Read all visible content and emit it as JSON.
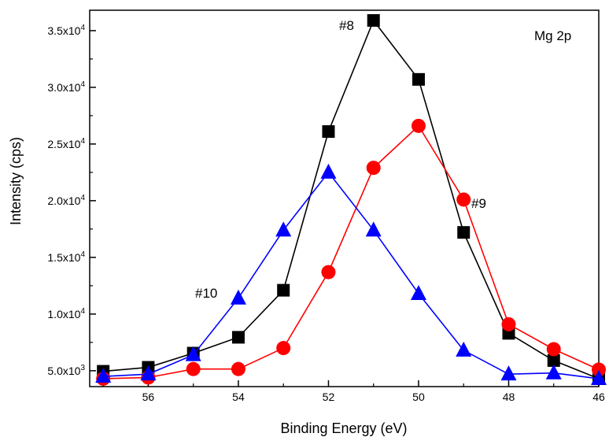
{
  "chart_data": {
    "type": "line",
    "title": "",
    "xlabel": "Binding Energy (eV)",
    "ylabel": "Intensity (cps)",
    "xlim": [
      57.3,
      46
    ],
    "ylim": [
      3600,
      36800
    ],
    "x_reversed": true,
    "grid": false,
    "xticks": [
      56,
      54,
      52,
      50,
      48,
      46
    ],
    "yticks": [
      {
        "value": 5000,
        "mantissa": "5.0x10",
        "exp": "3"
      },
      {
        "value": 10000,
        "mantissa": "1.0x10",
        "exp": "4"
      },
      {
        "value": 15000,
        "mantissa": "1.5x10",
        "exp": "4"
      },
      {
        "value": 20000,
        "mantissa": "2.0x10",
        "exp": "4"
      },
      {
        "value": 25000,
        "mantissa": "2.5x10",
        "exp": "4"
      },
      {
        "value": 30000,
        "mantissa": "3.0x10",
        "exp": "4"
      },
      {
        "value": 35000,
        "mantissa": "3.5x10",
        "exp": "4"
      }
    ],
    "series": [
      {
        "name": "#8",
        "color": "#000000",
        "marker": "square",
        "points": [
          [
            57,
            4950
          ],
          [
            56,
            5300
          ],
          [
            55,
            6550
          ],
          [
            54,
            7950
          ],
          [
            53,
            12100
          ],
          [
            52,
            26100
          ],
          [
            51,
            35900
          ],
          [
            50,
            30700
          ],
          [
            49,
            17200
          ],
          [
            48,
            8300
          ],
          [
            47,
            5900
          ],
          [
            46,
            4300
          ]
        ]
      },
      {
        "name": "#9",
        "color": "#ff0000",
        "marker": "circle",
        "points": [
          [
            57,
            4300
          ],
          [
            56,
            4400
          ],
          [
            55,
            5150
          ],
          [
            54,
            5150
          ],
          [
            53,
            7000
          ],
          [
            52,
            13700
          ],
          [
            51,
            22900
          ],
          [
            50,
            26600
          ],
          [
            49,
            20100
          ],
          [
            48,
            9100
          ],
          [
            47,
            6900
          ],
          [
            46,
            5100
          ]
        ]
      },
      {
        "name": "#10",
        "color": "#0000ff",
        "marker": "triangle",
        "points": [
          [
            57,
            4500
          ],
          [
            56,
            4700
          ],
          [
            55,
            6400
          ],
          [
            54,
            11400
          ],
          [
            53,
            17400
          ],
          [
            52,
            22500
          ],
          [
            51,
            17400
          ],
          [
            50,
            11800
          ],
          [
            49,
            6800
          ],
          [
            48,
            4700
          ],
          [
            47,
            4800
          ],
          [
            46,
            4300
          ]
        ]
      }
    ],
    "annotations": [
      {
        "text": "#8",
        "series": "#8"
      },
      {
        "text": "#9",
        "series": "#9"
      },
      {
        "text": "#10",
        "series": "#10"
      },
      {
        "text": "Mg 2p",
        "series": ""
      }
    ]
  }
}
